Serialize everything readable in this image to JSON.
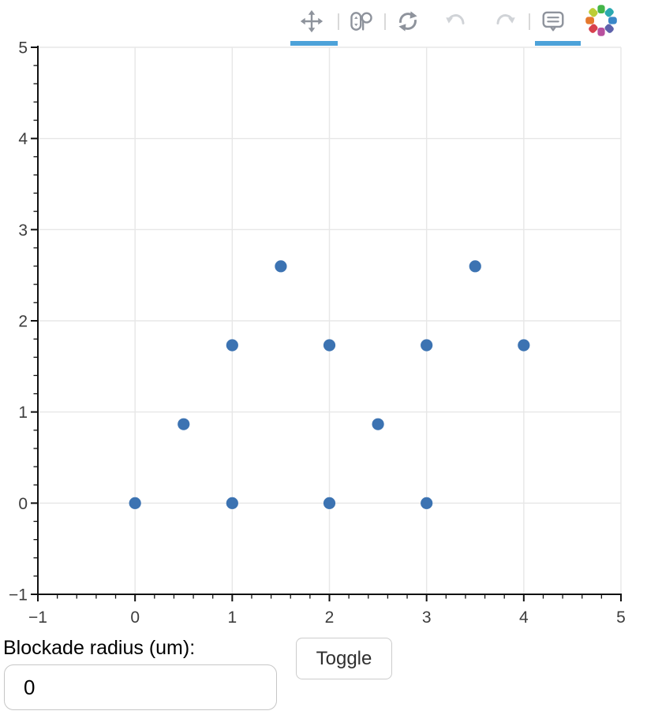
{
  "toolbar": {
    "tools": [
      {
        "id": "pan",
        "label": "Pan",
        "active": true,
        "enabled": true
      },
      {
        "id": "wheel-zoom",
        "label": "Wheel Zoom",
        "active": false,
        "enabled": true
      },
      {
        "id": "reset",
        "label": "Reset",
        "active": false,
        "enabled": true
      },
      {
        "id": "undo",
        "label": "Undo",
        "active": false,
        "enabled": false
      },
      {
        "id": "redo",
        "label": "Redo",
        "active": false,
        "enabled": false
      },
      {
        "id": "hover",
        "label": "Hover",
        "active": true,
        "enabled": true
      }
    ],
    "active_underline_color": "#4da2d9",
    "icon_color": "#8e939c",
    "icon_disabled_color": "#d0d3d7",
    "logo_colors": [
      "#44b549",
      "#2aa9b0",
      "#3a87c8",
      "#5e62ab",
      "#b8509e",
      "#d8414d",
      "#e5782d",
      "#bccd35"
    ]
  },
  "chart_data": {
    "type": "scatter",
    "title": "",
    "xlabel": "",
    "ylabel": "",
    "xlim": [
      -1,
      5
    ],
    "ylim": [
      -1,
      5
    ],
    "x_ticks": [
      -1,
      0,
      1,
      2,
      3,
      4,
      5
    ],
    "y_ticks": [
      -1,
      0,
      1,
      2,
      3,
      4,
      5
    ],
    "x_tick_labels": [
      "−1",
      "0",
      "1",
      "2",
      "3",
      "4",
      "5"
    ],
    "y_tick_labels": [
      "−1",
      "0",
      "1",
      "2",
      "3",
      "4",
      "5"
    ],
    "minor_tick_step": 0.2,
    "grid": true,
    "legend": null,
    "points": [
      {
        "x": 0,
        "y": 0
      },
      {
        "x": 1,
        "y": 0
      },
      {
        "x": 2,
        "y": 0
      },
      {
        "x": 3,
        "y": 0
      },
      {
        "x": 0.5,
        "y": 0.866
      },
      {
        "x": 2.5,
        "y": 0.866
      },
      {
        "x": 1,
        "y": 1.732
      },
      {
        "x": 2,
        "y": 1.732
      },
      {
        "x": 3,
        "y": 1.732
      },
      {
        "x": 4,
        "y": 1.732
      },
      {
        "x": 1.5,
        "y": 2.598
      },
      {
        "x": 3.5,
        "y": 2.598
      }
    ],
    "marker_color": "#3c73b2",
    "marker_radius": 7.6,
    "colors": {
      "grid": "#e7e7e7",
      "axis": "#111111",
      "tick_label": "#3d3d3d"
    }
  },
  "controls": {
    "blockade_label": "Blockade radius (um):",
    "input_value": "0",
    "toggle_label": "Toggle"
  }
}
